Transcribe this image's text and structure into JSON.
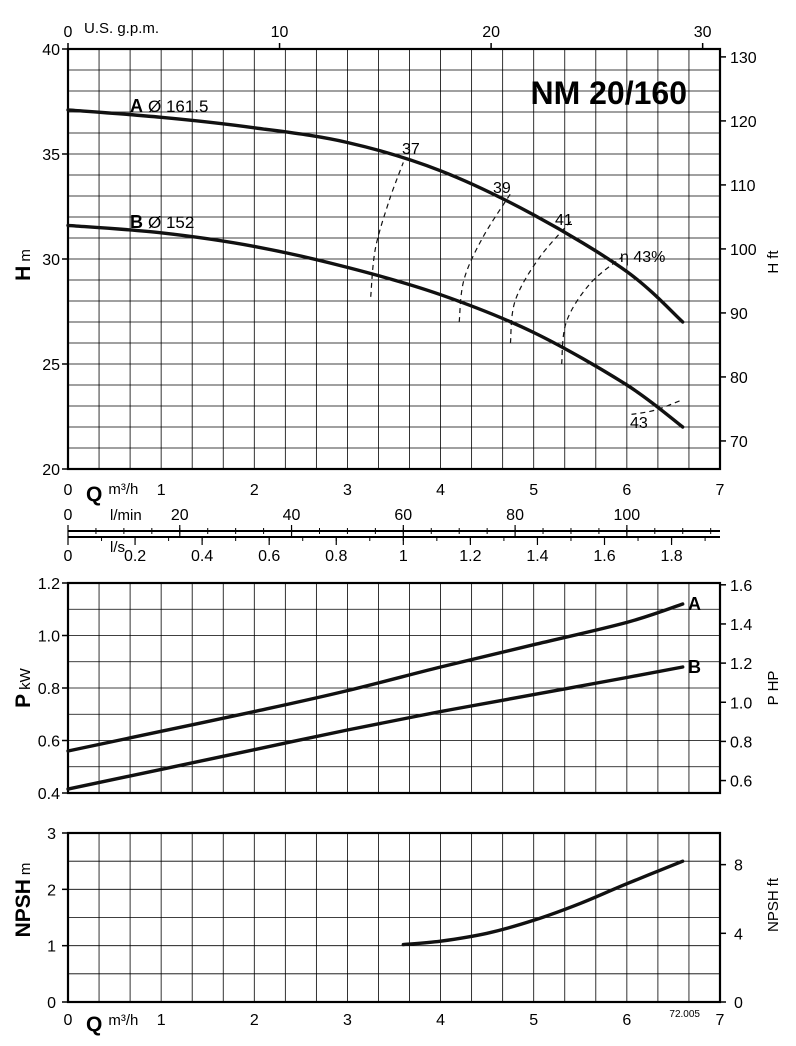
{
  "title": "NM 20/160",
  "code": "72.005",
  "chart_data": [
    {
      "type": "line",
      "name": "head",
      "y_label": "H",
      "y_unit": "m",
      "y_right_label": "H",
      "y_right_unit": "ft",
      "xlim": [
        0,
        7
      ],
      "ylim": [
        20,
        40
      ],
      "y_ticks": [
        20,
        25,
        30,
        35,
        40
      ],
      "y_right_ticks": [
        70,
        80,
        90,
        100,
        110,
        120,
        130
      ],
      "top_axis_label": "U.S. g.p.m.",
      "top_axis_ticks": [
        0,
        10,
        20,
        30
      ],
      "series": [
        {
          "name": "A",
          "label": "Ø 161.5",
          "x": [
            0,
            1,
            2,
            3,
            4,
            5,
            6,
            6.6
          ],
          "y": [
            37.1,
            36.75,
            36.25,
            35.55,
            34.2,
            32.1,
            29.4,
            27.0
          ]
        },
        {
          "name": "B",
          "label": "Ø 152",
          "x": [
            0,
            1,
            2,
            3,
            4,
            5,
            6,
            6.6
          ],
          "y": [
            31.6,
            31.25,
            30.6,
            29.6,
            28.3,
            26.5,
            24.0,
            22.0
          ]
        }
      ],
      "efficiency_labels": [
        "37",
        "39",
        "41",
        "η 43%",
        "43"
      ],
      "efficiency_curves": [
        {
          "label": "37",
          "x": [
            3.25,
            3.3,
            3.45,
            3.6
          ],
          "y": [
            28.2,
            30.5,
            32.8,
            34.6
          ]
        },
        {
          "label": "39",
          "x": [
            4.2,
            4.25,
            4.45,
            4.75
          ],
          "y": [
            27.0,
            29.0,
            31.0,
            33.1
          ]
        },
        {
          "label": "41",
          "x": [
            4.75,
            4.8,
            5.05,
            5.4
          ],
          "y": [
            26.0,
            28.0,
            30.0,
            31.8
          ]
        },
        {
          "label": "η 43%",
          "x": [
            5.3,
            5.35,
            5.6,
            5.95
          ],
          "y": [
            25.0,
            27.0,
            28.8,
            30.1
          ]
        },
        {
          "label": "43",
          "x": [
            6.05,
            6.3,
            6.6
          ],
          "y": [
            22.6,
            22.8,
            23.3
          ]
        }
      ]
    },
    {
      "type": "axis",
      "name": "flow-scales",
      "q_label": "Q",
      "q_unit": "m³/h",
      "q_ticks": [
        0,
        1,
        2,
        3,
        4,
        5,
        6,
        7
      ],
      "lmin_label": "l/min",
      "lmin_ticks": [
        0,
        20,
        40,
        60,
        80,
        100
      ],
      "ls_label": "l/s",
      "ls_ticks": [
        "0",
        "0.2",
        "0.4",
        "0.6",
        "0.8",
        "1",
        "1.2",
        "1.4",
        "1.6",
        "1.8"
      ]
    },
    {
      "type": "line",
      "name": "power",
      "y_label": "P",
      "y_unit": "kW",
      "y_right_label": "P",
      "y_right_unit": "HP",
      "xlim": [
        0,
        7
      ],
      "ylim": [
        0.4,
        1.2
      ],
      "y_ticks": [
        "0.4",
        "0.6",
        "0.8",
        "1.0",
        "1.2"
      ],
      "y_right_ticks": [
        "0.6",
        "0.8",
        "1.0",
        "1.2",
        "1.4",
        "1.6"
      ],
      "series": [
        {
          "name": "A",
          "x": [
            0,
            1,
            2,
            3,
            4,
            5,
            6,
            6.6
          ],
          "y": [
            0.56,
            0.635,
            0.71,
            0.79,
            0.88,
            0.965,
            1.05,
            1.12
          ]
        },
        {
          "name": "B",
          "x": [
            0,
            1,
            2,
            3,
            4,
            5,
            6,
            6.6
          ],
          "y": [
            0.415,
            0.49,
            0.565,
            0.64,
            0.71,
            0.775,
            0.84,
            0.88
          ]
        }
      ]
    },
    {
      "type": "line",
      "name": "npsh",
      "y_label": "NPSH",
      "y_unit": "m",
      "y_right_label": "NPSH",
      "y_right_unit": "ft",
      "xlim": [
        0,
        7
      ],
      "ylim": [
        0,
        3
      ],
      "y_ticks": [
        0,
        1,
        2,
        3
      ],
      "y_right_ticks": [
        0,
        4,
        8
      ],
      "series": [
        {
          "name": "NPSH",
          "x": [
            3.6,
            4.0,
            4.5,
            5.0,
            5.5,
            6.0,
            6.6
          ],
          "y": [
            1.02,
            1.08,
            1.22,
            1.45,
            1.75,
            2.1,
            2.5
          ]
        }
      ]
    }
  ]
}
